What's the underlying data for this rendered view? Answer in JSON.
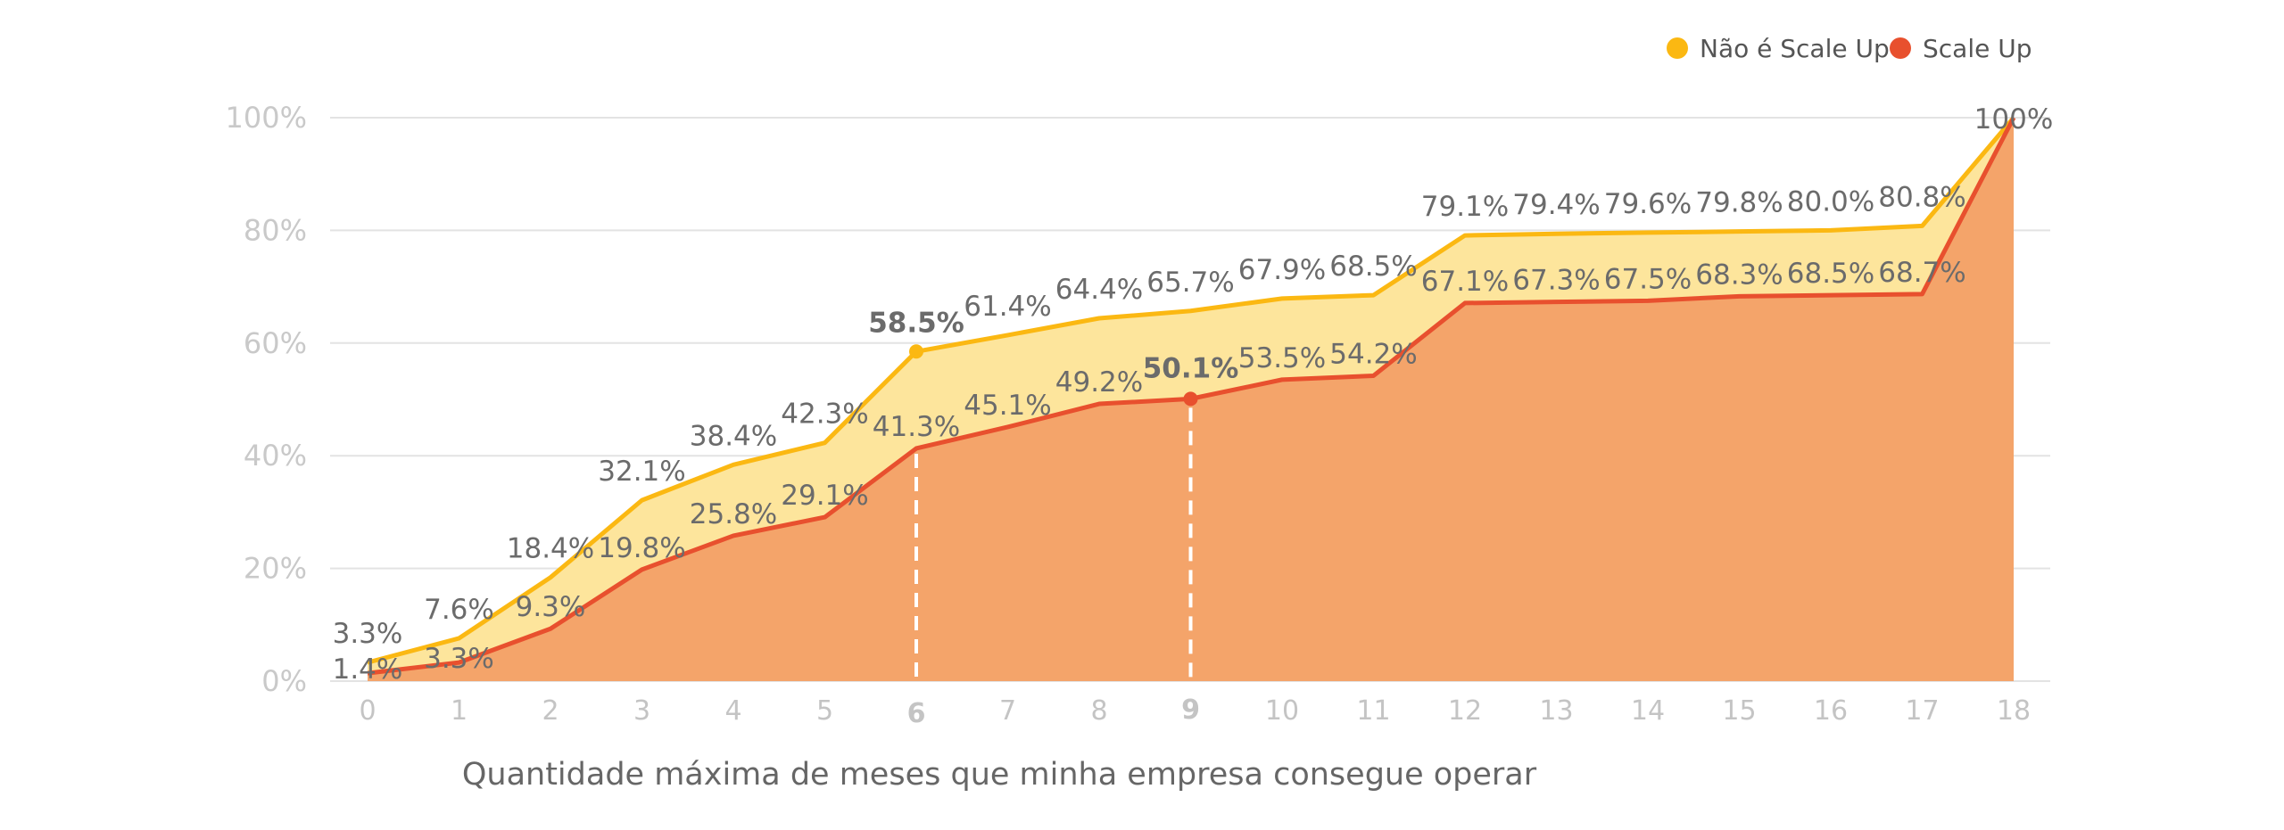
{
  "colors": {
    "nao_line": "#FBB812",
    "nao_fill": "#FDE59C",
    "scale_line": "#E8502E",
    "scale_fill": "#F4A46A",
    "grid": "#E3E3E3",
    "highlight_guide": "#FFFFFF"
  },
  "chart_data": {
    "type": "area",
    "xlabel": "Quantidade máxima de meses que minha empresa consegue operar",
    "ylabel": "",
    "ylim": [
      0,
      100
    ],
    "yticks": [
      "0%",
      "20%",
      "40%",
      "60%",
      "80%",
      "100%"
    ],
    "x": [
      "0",
      "1",
      "2",
      "3",
      "4",
      "5",
      "6",
      "7",
      "8",
      "9",
      "10",
      "11",
      "12",
      "13",
      "14",
      "15",
      "16",
      "17",
      "18"
    ],
    "legend_position": "top-right",
    "grid": true,
    "series": [
      {
        "name": "Não é Scale Up",
        "values": [
          3.3,
          7.6,
          18.4,
          32.1,
          38.4,
          42.3,
          58.5,
          61.4,
          64.4,
          65.7,
          67.9,
          68.5,
          79.1,
          79.4,
          79.6,
          79.8,
          80.0,
          80.8,
          100
        ],
        "labels": [
          "3.3%",
          "7.6%",
          "18.4%",
          "32.1%",
          "38.4%",
          "42.3%",
          "58.5%",
          "61.4%",
          "64.4%",
          "65.7%",
          "67.9%",
          "68.5%",
          "79.1%",
          "79.4%",
          "79.6%",
          "79.8%",
          "80.0%",
          "80.8%",
          ""
        ],
        "highlight_index": 6
      },
      {
        "name": "Scale Up",
        "values": [
          1.4,
          3.3,
          9.3,
          19.8,
          25.8,
          29.1,
          41.3,
          45.1,
          49.2,
          50.1,
          53.5,
          54.2,
          67.1,
          67.3,
          67.5,
          68.3,
          68.5,
          68.7,
          100
        ],
        "labels": [
          "1.4%",
          "3.3%",
          "9.3%",
          "19.8%",
          "25.8%",
          "29.1%",
          "41.3%",
          "45.1%",
          "49.2%",
          "50.1%",
          "53.5%",
          "54.2%",
          "67.1%",
          "67.3%",
          "67.5%",
          "68.3%",
          "68.5%",
          "68.7%",
          "100%"
        ],
        "highlight_index": 9
      }
    ]
  }
}
